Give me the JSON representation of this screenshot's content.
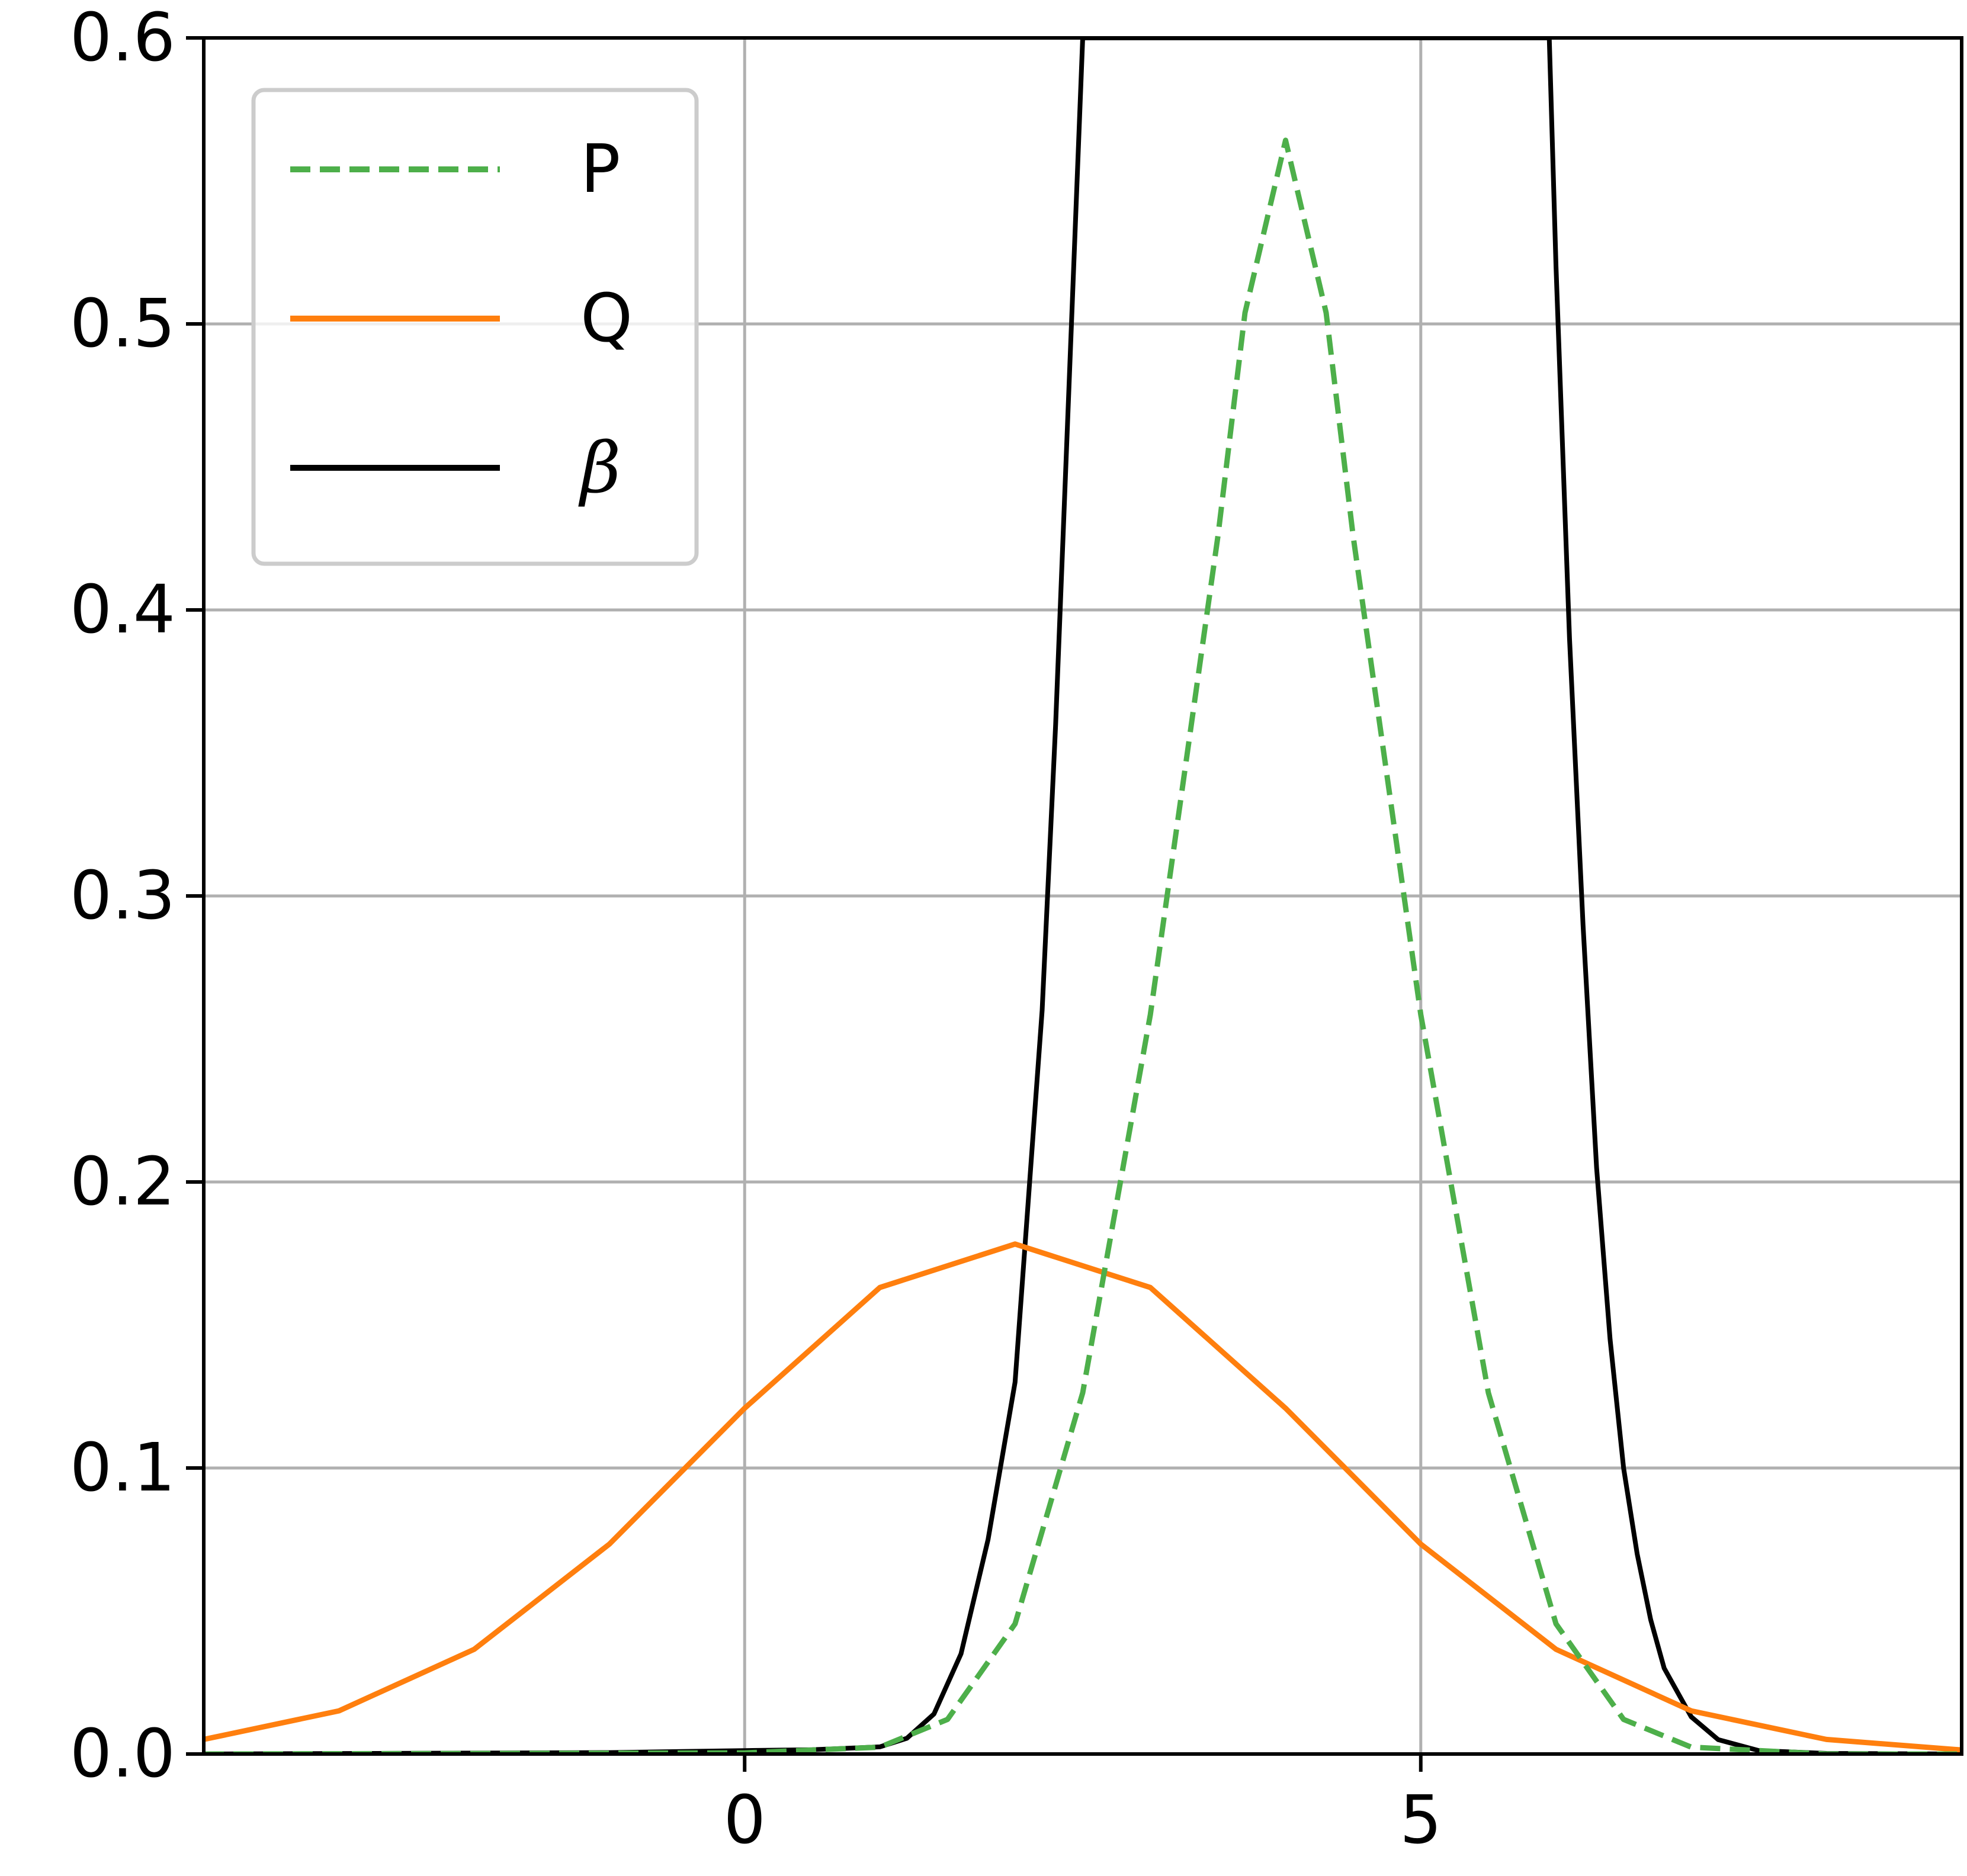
{
  "chart_data": {
    "type": "line",
    "title": "",
    "xlabel": "",
    "ylabel": "",
    "xlim": [
      -4,
      9
    ],
    "ylim": [
      0,
      0.6
    ],
    "grid": true,
    "legend": {
      "placement": "upper-left"
    },
    "xticks": [
      0,
      5
    ],
    "xtick_labels": [
      "0",
      "5"
    ],
    "yticks": [
      0.0,
      0.1,
      0.2,
      0.3,
      0.4,
      0.5,
      0.6
    ],
    "ytick_labels": [
      "0.0",
      "0.1",
      "0.2",
      "0.3",
      "0.4",
      "0.5",
      "0.6"
    ],
    "series": [
      {
        "name": "P",
        "color": "#4daf4a",
        "style": "dashed",
        "x": [
          -4,
          0,
          1.0,
          1.5,
          2.0,
          2.5,
          3.0,
          3.5,
          3.7,
          4.0,
          4.3,
          4.5,
          5.0,
          5.5,
          6.0,
          6.5,
          7.0,
          8.0,
          9.0
        ],
        "y": [
          0,
          0.0004,
          0.0024,
          0.0121,
          0.0455,
          0.1263,
          0.2585,
          0.4258,
          0.5039,
          0.5642,
          0.5039,
          0.4258,
          0.2585,
          0.1263,
          0.0455,
          0.0121,
          0.0024,
          0,
          0
        ]
      },
      {
        "name": "Q",
        "color": "#ff7f0e",
        "style": "solid",
        "x": [
          -4,
          -3,
          -2,
          -1,
          0,
          1,
          2,
          3,
          4,
          5,
          6,
          7,
          8,
          9
        ],
        "y": [
          0.0051,
          0.0151,
          0.0366,
          0.0734,
          0.1209,
          0.1631,
          0.1783,
          0.1631,
          0.1209,
          0.0734,
          0.0366,
          0.0151,
          0.0051,
          0.0014
        ]
      },
      {
        "name": "β",
        "color": "#000000",
        "style": "solid",
        "x": [
          -4,
          -1,
          0,
          0.5,
          1.0,
          1.2,
          1.4,
          1.6,
          1.8,
          2.0,
          2.2,
          2.3,
          2.4,
          2.5,
          2.6,
          2.65,
          5.95,
          6.0,
          6.1,
          6.2,
          6.3,
          6.4,
          6.5,
          6.6,
          6.7,
          6.8,
          7.0,
          7.2,
          7.5,
          8.0,
          9.0
        ],
        "y": [
          0,
          0.0005,
          0.0012,
          0.0015,
          0.0025,
          0.0055,
          0.014,
          0.035,
          0.075,
          0.13,
          0.26,
          0.36,
          0.48,
          0.6,
          0.6,
          0.6,
          0.6,
          0.52,
          0.39,
          0.29,
          0.205,
          0.145,
          0.1,
          0.07,
          0.047,
          0.03,
          0.013,
          0.005,
          0.0012,
          0.0002,
          0
        ]
      }
    ]
  }
}
